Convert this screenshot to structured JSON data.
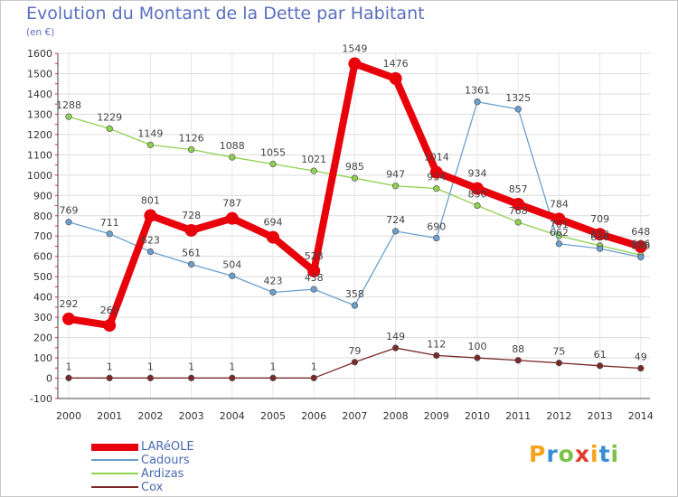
{
  "title": "Evolution du Montant de la Dette par Habitant",
  "subtitle": "(en €)",
  "logo": {
    "text": "Proxiti",
    "letter_colors": [
      "#f6a31a",
      "#3a8dd4",
      "#7cc246",
      "#e23a2e",
      "#f6a31a",
      "#3a8dd4",
      "#7cc246"
    ]
  },
  "chart_data": {
    "type": "line",
    "title": "Evolution du Montant de la Dette par Habitant",
    "subtitle": "(en €)",
    "xlabel": "",
    "ylabel": "",
    "ylim": [
      -100,
      1600
    ],
    "yticks": [
      -100,
      0,
      100,
      200,
      300,
      400,
      500,
      600,
      700,
      800,
      900,
      1000,
      1100,
      1200,
      1300,
      1400,
      1500,
      1600
    ],
    "grid": true,
    "legend_position": "bottom-left",
    "x": [
      "2000",
      "2001",
      "2002",
      "2003",
      "2004",
      "2005",
      "2006",
      "2007",
      "2008",
      "2009",
      "2010",
      "2011",
      "2012",
      "2013",
      "2014"
    ],
    "series": [
      {
        "name": "LARéOLE",
        "color": "#e8000b",
        "values": [
          292,
          260,
          801,
          728,
          787,
          694,
          528,
          1549,
          1476,
          1014,
          934,
          857,
          784,
          709,
          648
        ]
      },
      {
        "name": "Cadours",
        "color": "#6a9fd0",
        "values": [
          769,
          711,
          623,
          561,
          504,
          423,
          438,
          358,
          724,
          690,
          1361,
          1325,
          662,
          638,
          596
        ]
      },
      {
        "name": "Ardizas",
        "color": "#8fd14f",
        "values": [
          1288,
          1229,
          1149,
          1126,
          1088,
          1055,
          1021,
          985,
          947,
          934,
          850,
          768,
          701,
          653,
          606
        ]
      },
      {
        "name": "Cox",
        "color": "#7a2828",
        "values": [
          1,
          1,
          1,
          1,
          1,
          1,
          1,
          79,
          149,
          112,
          100,
          88,
          75,
          61,
          49
        ]
      }
    ]
  }
}
